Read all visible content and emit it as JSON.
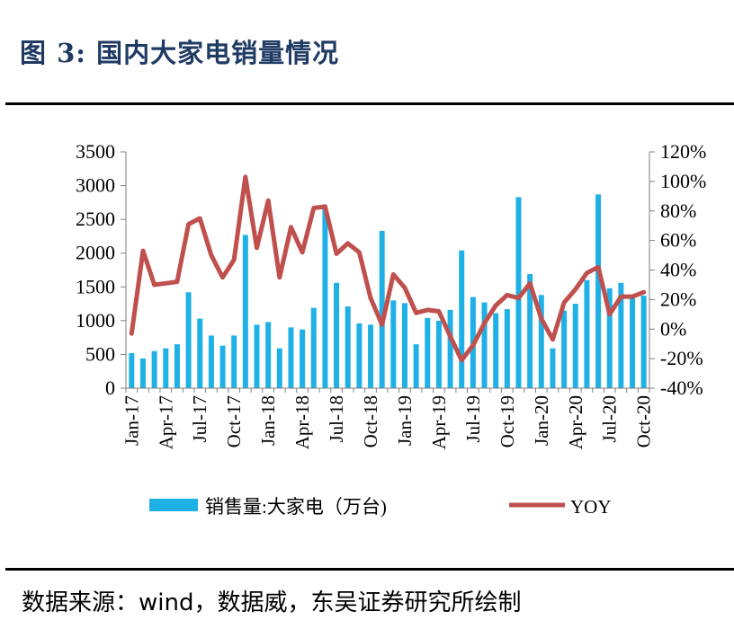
{
  "title": "图 3:  国内大家电销量情况",
  "source": "数据来源：wind，数据威，东吴证券研究所绘制",
  "chart_data": {
    "type": "bar",
    "categories": [
      "Jan-17",
      "Feb-17",
      "Mar-17",
      "Apr-17",
      "May-17",
      "Jun-17",
      "Jul-17",
      "Aug-17",
      "Sep-17",
      "Oct-17",
      "Nov-17",
      "Dec-17",
      "Jan-18",
      "Feb-18",
      "Mar-18",
      "Apr-18",
      "May-18",
      "Jun-18",
      "Jul-18",
      "Aug-18",
      "Sep-18",
      "Oct-18",
      "Nov-18",
      "Dec-18",
      "Jan-19",
      "Feb-19",
      "Mar-19",
      "Apr-19",
      "May-19",
      "Jun-19",
      "Jul-19",
      "Aug-19",
      "Sep-19",
      "Oct-19",
      "Nov-19",
      "Dec-19",
      "Jan-20",
      "Feb-20",
      "Mar-20",
      "Apr-20",
      "May-20",
      "Jun-20",
      "Jul-20",
      "Aug-20",
      "Sep-20",
      "Oct-20"
    ],
    "x_tick_labels": [
      "Jan-17",
      "Apr-17",
      "Jul-17",
      "Oct-17",
      "Jan-18",
      "Apr-18",
      "Jul-18",
      "Oct-18",
      "Jan-19",
      "Apr-19",
      "Jul-19",
      "Oct-19",
      "Jan-20",
      "Apr-20",
      "Jul-20",
      "Oct-20"
    ],
    "series": [
      {
        "name": "销售量:大家电（万台)",
        "type": "bar",
        "axis": "left",
        "color": "#1fb1e6",
        "values": [
          520,
          440,
          550,
          590,
          650,
          1420,
          1030,
          780,
          630,
          780,
          2270,
          940,
          980,
          590,
          900,
          870,
          1190,
          2650,
          1560,
          1210,
          960,
          940,
          2330,
          1300,
          1260,
          650,
          1040,
          1000,
          1160,
          2040,
          1350,
          1270,
          1110,
          1170,
          2830,
          1690,
          1380,
          590,
          1150,
          1250,
          1600,
          2870,
          1480,
          1560,
          1340,
          1370
        ]
      },
      {
        "name": "YOY",
        "type": "line",
        "axis": "right",
        "color": "#c0504d",
        "values": [
          -3,
          53,
          30,
          31,
          32,
          71,
          75,
          50,
          35,
          47,
          103,
          55,
          87,
          35,
          69,
          52,
          82,
          83,
          51,
          58,
          52,
          21,
          3,
          37,
          28,
          11,
          13,
          12,
          -5,
          -21,
          -11,
          4,
          16,
          23,
          21,
          31,
          7,
          -7,
          18,
          27,
          38,
          42,
          10,
          22,
          22,
          25
        ]
      }
    ],
    "y_left": {
      "min": 0,
      "max": 3500,
      "ticks": [
        "0",
        "500",
        "1000",
        "1500",
        "2000",
        "2500",
        "3000",
        "3500"
      ]
    },
    "y_right": {
      "min": -40,
      "max": 120,
      "ticks": [
        "-40%",
        "-20%",
        "0%",
        "20%",
        "40%",
        "60%",
        "80%",
        "100%",
        "120%"
      ]
    },
    "legend": {
      "bar_label": "销售量:大家电（万台)",
      "line_label": "YOY",
      "placement": "bottom"
    }
  }
}
